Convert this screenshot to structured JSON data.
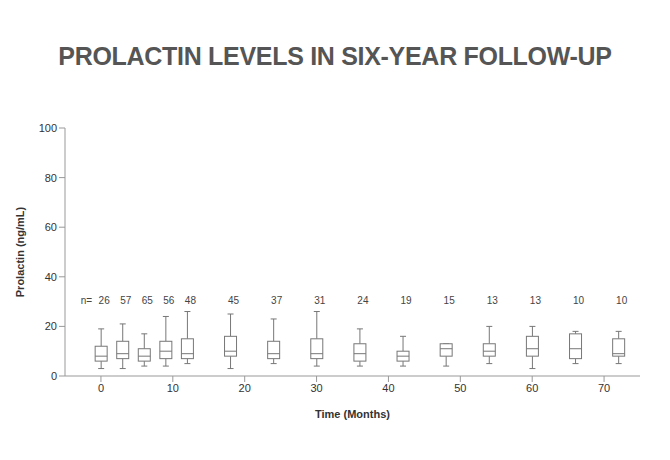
{
  "chart_data": {
    "type": "box",
    "title": "PROLACTIN LEVELS IN SIX-YEAR FOLLOW-UP",
    "x_label": "Time (Months)",
    "y_label": "Prolactin (ng/mL)",
    "count_label": "n=",
    "x": [
      0,
      3,
      6,
      9,
      12,
      18,
      24,
      30,
      36,
      42,
      48,
      54,
      60,
      66,
      72
    ],
    "min": [
      3,
      3,
      4,
      4,
      5,
      3,
      5,
      4,
      4,
      4,
      4,
      5,
      3,
      5,
      5
    ],
    "q1": [
      6,
      7,
      6,
      7,
      7,
      8,
      7,
      7,
      6,
      6,
      8,
      8,
      8,
      7,
      8
    ],
    "median": [
      8,
      9,
      8,
      10,
      9,
      10,
      9,
      9,
      9,
      8,
      11,
      10,
      11,
      11,
      9
    ],
    "q3": [
      12,
      14,
      11,
      14,
      15,
      16,
      14,
      15,
      13,
      10,
      13,
      13,
      16,
      17,
      15
    ],
    "max": [
      19,
      21,
      17,
      24,
      26,
      25,
      23,
      26,
      19,
      16,
      13,
      20,
      20,
      18,
      18
    ],
    "counts": [
      26,
      57,
      65,
      56,
      48,
      45,
      37,
      31,
      24,
      19,
      15,
      13,
      13,
      10,
      10
    ],
    "xlim": [
      -5,
      75
    ],
    "xticks": [
      0,
      10,
      20,
      30,
      40,
      50,
      60,
      70
    ],
    "ylim": [
      0,
      100
    ],
    "yticks": [
      0,
      20,
      40,
      60,
      80,
      100
    ],
    "grid": false,
    "color": "#777777"
  }
}
